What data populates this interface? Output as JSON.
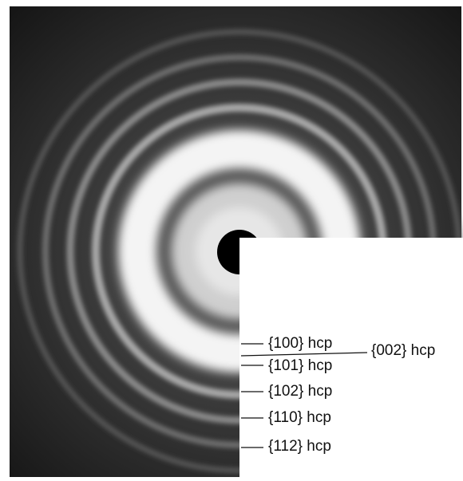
{
  "labels": [
    "{100} hcp",
    "{002} hcp",
    "{101} hcp",
    "{102} hcp",
    "{110} hcp",
    "{112} hcp"
  ]
}
